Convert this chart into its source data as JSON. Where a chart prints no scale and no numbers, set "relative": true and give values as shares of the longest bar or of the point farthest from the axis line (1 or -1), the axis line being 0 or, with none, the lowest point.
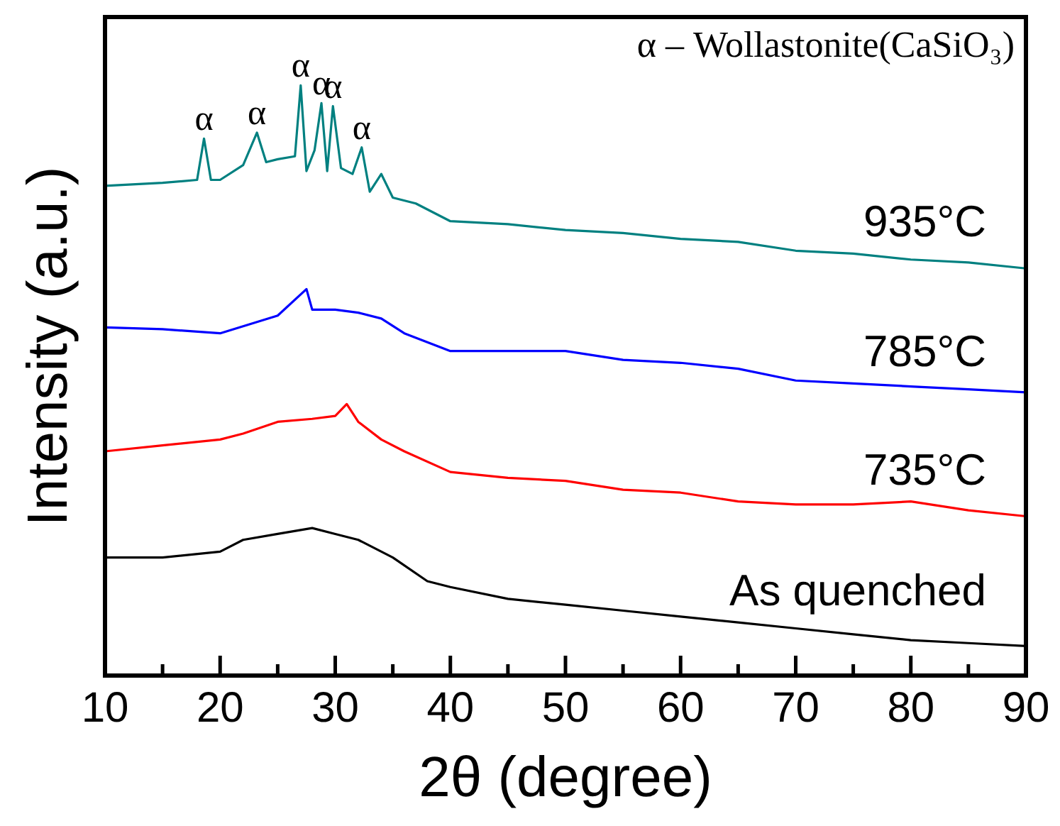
{
  "chart_data": {
    "type": "line",
    "relative": true,
    "xlabel": "2θ (degree)",
    "ylabel": "Intensity (a.u.)",
    "xlim": [
      10,
      90
    ],
    "xticks": [
      10,
      {
        "value": 15,
        "label": null
      },
      20,
      {
        "value": 25,
        "label": null
      },
      30,
      {
        "value": 35,
        "label": null
      },
      40,
      {
        "value": 45,
        "label": null
      },
      50,
      {
        "value": 55,
        "label": null
      },
      60,
      {
        "value": 65,
        "label": null
      },
      70,
      {
        "value": 75,
        "label": null
      },
      80,
      {
        "value": 85,
        "label": null
      },
      90
    ],
    "tick_labels": "x",
    "grid": false,
    "legend": false,
    "marker": "none",
    "series": [
      {
        "name": "As quenched",
        "color": "#000000",
        "x": [
          10,
          15,
          20,
          22,
          25,
          28,
          30,
          32,
          35,
          38,
          40,
          45,
          50,
          55,
          60,
          65,
          70,
          75,
          80,
          85,
          90
        ],
        "values": [
          0.2,
          0.2,
          0.21,
          0.23,
          0.24,
          0.25,
          0.24,
          0.23,
          0.2,
          0.16,
          0.15,
          0.13,
          0.12,
          0.11,
          0.1,
          0.09,
          0.08,
          0.07,
          0.06,
          0.055,
          0.05
        ]
      },
      {
        "name": "735°C",
        "color": "#ff0000",
        "x": [
          10,
          15,
          20,
          22,
          25,
          28,
          30,
          31,
          32,
          34,
          36,
          40,
          45,
          50,
          55,
          60,
          65,
          70,
          75,
          80,
          85,
          90
        ],
        "values": [
          0.38,
          0.39,
          0.4,
          0.41,
          0.43,
          0.435,
          0.44,
          0.46,
          0.43,
          0.4,
          0.38,
          0.345,
          0.335,
          0.33,
          0.315,
          0.31,
          0.295,
          0.29,
          0.29,
          0.295,
          0.28,
          0.27
        ]
      },
      {
        "name": "785°C",
        "color": "#0000ff",
        "x": [
          10,
          15,
          20,
          25,
          27.5,
          28,
          30,
          32,
          34,
          36,
          40,
          45,
          50,
          55,
          60,
          65,
          70,
          75,
          80,
          85,
          90
        ],
        "values": [
          0.59,
          0.587,
          0.58,
          0.61,
          0.655,
          0.62,
          0.62,
          0.615,
          0.605,
          0.58,
          0.55,
          0.55,
          0.55,
          0.535,
          0.53,
          0.52,
          0.5,
          0.495,
          0.49,
          0.485,
          0.48
        ]
      },
      {
        "name": "935°C",
        "color": "#008080",
        "x": [
          10,
          15,
          18,
          18.6,
          19.2,
          20,
          22,
          23.2,
          24,
          25,
          26.5,
          27,
          27.5,
          28.2,
          28.8,
          29.3,
          29.8,
          30.5,
          31.5,
          32.3,
          33,
          34,
          35,
          37,
          40,
          45,
          50,
          55,
          60,
          65,
          70,
          75,
          80,
          85,
          90
        ],
        "values": [
          0.83,
          0.835,
          0.84,
          0.91,
          0.84,
          0.84,
          0.865,
          0.92,
          0.87,
          0.875,
          0.88,
          1.0,
          0.855,
          0.89,
          0.97,
          0.855,
          0.965,
          0.86,
          0.85,
          0.895,
          0.82,
          0.85,
          0.81,
          0.8,
          0.77,
          0.765,
          0.755,
          0.75,
          0.74,
          0.735,
          0.72,
          0.715,
          0.705,
          0.7,
          0.69
        ]
      }
    ],
    "annotations": [
      {
        "text": "α",
        "x": 18.6,
        "y": 0.91
      },
      {
        "text": "α",
        "x": 23.2,
        "y": 0.92
      },
      {
        "text": "α",
        "x": 27,
        "y": 1.0
      },
      {
        "text": "α",
        "x": 28.8,
        "y": 0.97
      },
      {
        "text": "α",
        "x": 29.8,
        "y": 0.965
      },
      {
        "text": "α",
        "x": 32.3,
        "y": 0.895
      },
      "α – Wollastonite(CaSiO₃)"
    ]
  }
}
